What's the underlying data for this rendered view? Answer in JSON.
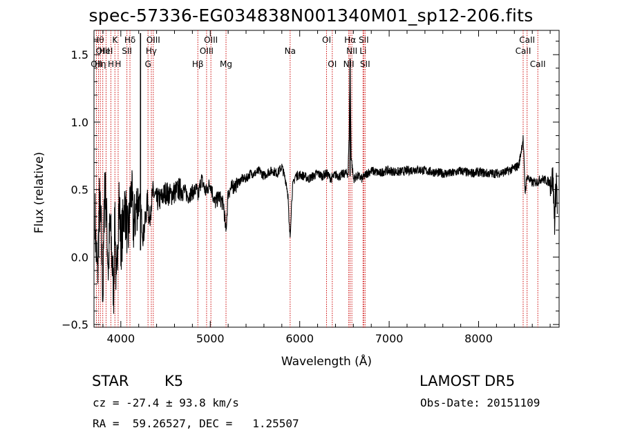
{
  "title": "spec-57336-EG034838N001340M01_sp12-206.fits",
  "info": {
    "class": "STAR",
    "subclass": "K5",
    "survey": "LAMOST DR5",
    "cz": "cz = -27.4 ± 93.8 km/s",
    "obs_date": "Obs-Date: 20151109",
    "coords": "RA =  59.26527, DEC =   1.25507"
  },
  "chart_data": {
    "type": "line",
    "title": "spec-57336-EG034838N001340M01_sp12-206.fits",
    "xlabel": "Wavelength (Å)",
    "ylabel": "Flux (relative)",
    "xlim": [
      3700,
      8900
    ],
    "ylim": [
      -0.52,
      1.68
    ],
    "xticks": [
      4000,
      5000,
      6000,
      7000,
      8000
    ],
    "yticks": [
      -0.5,
      0.0,
      0.5,
      1.0,
      1.5
    ],
    "ytick_labels": [
      "−0.5",
      "0.0",
      "0.5",
      "1.0",
      "1.5"
    ],
    "line_color": "#000000",
    "marker_color": "#cc0000",
    "series": [
      {
        "x": [
          3700,
          3720,
          3740,
          3760,
          3780,
          3800,
          3820,
          3840,
          3860,
          3880,
          3900,
          3920,
          3935,
          3950,
          3968,
          3980,
          4000,
          4020,
          4040,
          4060,
          4080,
          4100,
          4120,
          4140,
          4160,
          4180,
          4200,
          4220,
          4250,
          4280,
          4300,
          4320,
          4340,
          4360,
          4380,
          4400,
          4450,
          4500,
          4550,
          4600,
          4650,
          4700,
          4750,
          4800,
          4850,
          4861,
          4900,
          4950,
          5000,
          5050,
          5100,
          5150,
          5175,
          5200,
          5250,
          5300,
          5350,
          5400,
          5450,
          5500,
          5550,
          5600,
          5650,
          5700,
          5750,
          5800,
          5850,
          5870,
          5880,
          5893,
          5905,
          5920,
          5950,
          6000,
          6050,
          6100,
          6150,
          6200,
          6250,
          6300,
          6350,
          6400,
          6450,
          6500,
          6540,
          6553,
          6563,
          6575,
          6600,
          6650,
          6700,
          6750,
          6800,
          6850,
          6900,
          6950,
          7000,
          7100,
          7200,
          7300,
          7400,
          7500,
          7600,
          7700,
          7800,
          7900,
          8000,
          8100,
          8200,
          8300,
          8400,
          8450,
          8498,
          8520,
          8542,
          8560,
          8600,
          8662,
          8700,
          8750,
          8800,
          8830,
          8850,
          8870,
          8880
        ],
        "y": [
          0.6,
          0.1,
          -0.15,
          0.4,
          0.2,
          -0.3,
          0.6,
          0.3,
          -0.1,
          0.25,
          0.0,
          -0.25,
          0.35,
          -0.3,
          0.2,
          0.45,
          0.1,
          0.2,
          0.38,
          0.3,
          0.12,
          0.35,
          0.5,
          0.22,
          0.3,
          0.4,
          0.42,
          0.38,
          0.15,
          0.3,
          0.44,
          0.25,
          0.4,
          0.48,
          0.45,
          0.42,
          0.43,
          0.48,
          0.46,
          0.48,
          0.5,
          0.5,
          0.45,
          0.48,
          0.5,
          0.44,
          0.58,
          0.48,
          0.55,
          0.4,
          0.45,
          0.38,
          0.18,
          0.48,
          0.52,
          0.54,
          0.58,
          0.58,
          0.62,
          0.62,
          0.64,
          0.6,
          0.63,
          0.64,
          0.62,
          0.67,
          0.55,
          0.45,
          0.25,
          0.15,
          0.35,
          0.52,
          0.6,
          0.61,
          0.6,
          0.58,
          0.6,
          0.62,
          0.6,
          0.62,
          0.58,
          0.61,
          0.6,
          0.62,
          0.62,
          0.9,
          1.45,
          0.75,
          0.58,
          0.6,
          0.58,
          0.62,
          0.64,
          0.63,
          0.62,
          0.64,
          0.64,
          0.63,
          0.64,
          0.65,
          0.64,
          0.63,
          0.62,
          0.62,
          0.64,
          0.62,
          0.63,
          0.62,
          0.62,
          0.63,
          0.66,
          0.68,
          0.88,
          0.48,
          0.6,
          0.58,
          0.55,
          0.56,
          0.58,
          0.57,
          0.55,
          0.58,
          0.28,
          0.58,
          0.4
        ]
      }
    ],
    "line_markers": [
      {
        "x": 3727,
        "row": 3,
        "label": "OII"
      },
      {
        "x": 3750,
        "row": 1,
        "label": "Hθ"
      },
      {
        "x": 3771,
        "row": 3,
        "label": "Hη"
      },
      {
        "x": 3798,
        "row": 2,
        "label": "OIII"
      },
      {
        "x": 3835,
        "row": 2,
        "label": "HeI"
      },
      {
        "x": 3889,
        "row": 3,
        "label": "H"
      },
      {
        "x": 3934,
        "row": 1,
        "label": "K"
      },
      {
        "x": 3970,
        "row": 3,
        "label": "H"
      },
      {
        "x": 4068,
        "row": 2,
        "label": "SII"
      },
      {
        "x": 4102,
        "row": 1,
        "label": "Hδ"
      },
      {
        "x": 4304,
        "row": 3,
        "label": "G"
      },
      {
        "x": 4341,
        "row": 2,
        "label": "Hγ"
      },
      {
        "x": 4363,
        "row": 1,
        "label": "OIII"
      },
      {
        "x": 4861,
        "row": 3,
        "label": "Hβ"
      },
      {
        "x": 4959,
        "row": 2,
        "label": "OIII"
      },
      {
        "x": 5007,
        "row": 1,
        "label": "OIII"
      },
      {
        "x": 5176,
        "row": 3,
        "label": "Mg"
      },
      {
        "x": 5893,
        "row": 2,
        "label": "Na"
      },
      {
        "x": 6300,
        "row": 1,
        "label": "OI"
      },
      {
        "x": 6364,
        "row": 3,
        "label": "OI"
      },
      {
        "x": 6548,
        "row": 3,
        "label": "NII"
      },
      {
        "x": 6563,
        "row": 1,
        "label": "Hα"
      },
      {
        "x": 6583,
        "row": 2,
        "label": "NII"
      },
      {
        "x": 6708,
        "row": 2,
        "label": "Li"
      },
      {
        "x": 6716,
        "row": 1,
        "label": "SII"
      },
      {
        "x": 6731,
        "row": 3,
        "label": "SII"
      },
      {
        "x": 8498,
        "row": 2,
        "label": "CaII"
      },
      {
        "x": 8542,
        "row": 1,
        "label": "CaII"
      },
      {
        "x": 8662,
        "row": 3,
        "label": "CaII"
      }
    ]
  }
}
